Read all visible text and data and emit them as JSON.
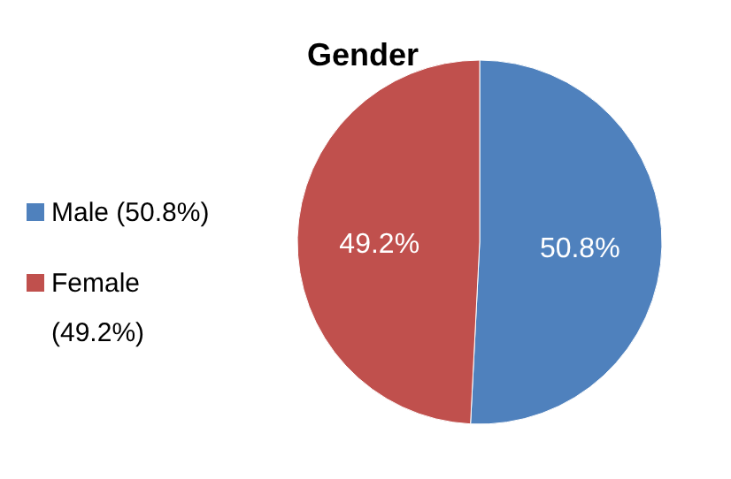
{
  "chart_data": {
    "type": "pie",
    "title": "Gender",
    "categories": [
      "Male (50.8%)",
      "Female (49.2%)"
    ],
    "values": [
      50.8,
      49.2
    ],
    "colors": [
      "#4f81bd",
      "#c0504d"
    ],
    "value_labels": [
      "50.8%",
      "49.2%"
    ],
    "legend": "left"
  }
}
